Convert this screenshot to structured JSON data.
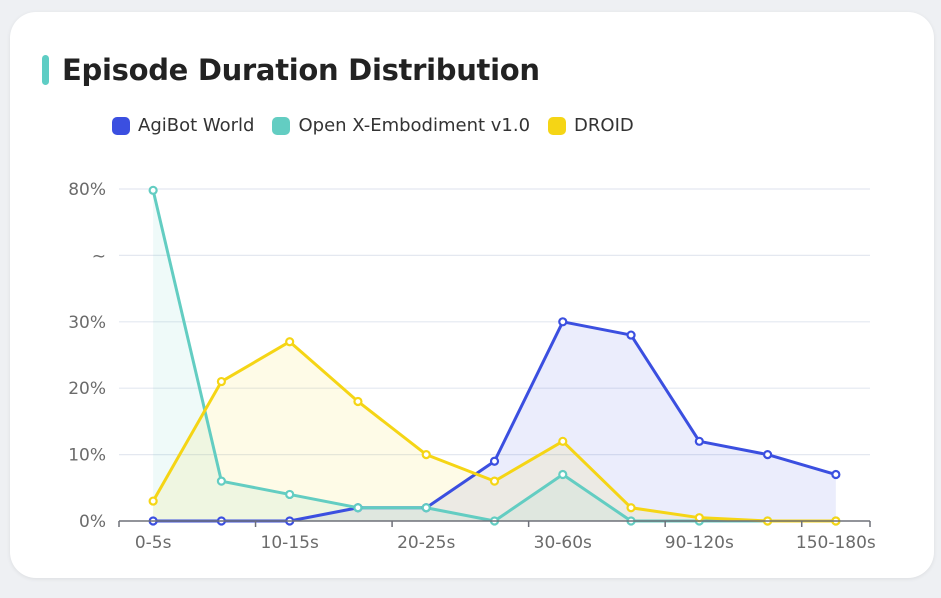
{
  "title": "Episode Duration Distribution",
  "colors": {
    "accent": "#5ecdc4",
    "AgiBot World": "#3b4fe0",
    "Open X-Embodiment v1.0": "#63cdc2",
    "DROID": "#f5d515"
  },
  "chart_data": {
    "type": "line",
    "title": "Episode Duration Distribution",
    "x_tick_labels": [
      "0-5s",
      "10-15s",
      "20-25s",
      "30-60s",
      "90-120s",
      "150-180s"
    ],
    "y_tick_labels": [
      "0%",
      "10%",
      "20%",
      "30%",
      "~",
      "80%"
    ],
    "y_axis": "broken axis: 0-30% linear, break (~), then 80%",
    "grid": "horizontal",
    "legend_position": "top-left",
    "area_fill": true,
    "series": [
      {
        "name": "AgiBot World",
        "values": [
          0,
          0,
          0,
          2,
          2,
          9,
          30,
          28,
          12,
          10,
          7
        ]
      },
      {
        "name": "Open X-Embodiment v1.0",
        "values": [
          79.5,
          6,
          4,
          2,
          2,
          0,
          7,
          0,
          0,
          0,
          0
        ]
      },
      {
        "name": "DROID",
        "values": [
          3,
          21,
          27,
          18,
          10,
          6,
          12,
          2,
          0.5,
          0,
          0
        ]
      }
    ]
  }
}
